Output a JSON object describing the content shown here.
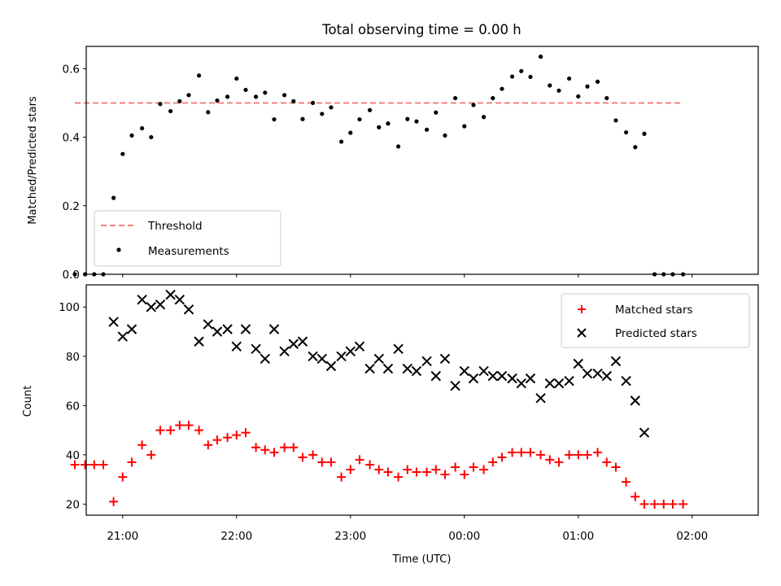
{
  "chart_data": [
    {
      "type": "scatter",
      "title": "Total observing time = 0.00 h",
      "ylabel": "Matched/Predicted stars",
      "ylim": [
        0,
        0.665
      ],
      "yticks": [
        "0.0",
        "0.2",
        "0.4",
        "0.6"
      ],
      "xrange_hours": [
        -3.32,
        2.58
      ],
      "xtick_hours": [
        -3,
        -2,
        -1,
        0,
        1,
        2
      ],
      "grid": false,
      "legend_position": "lower-left",
      "threshold": {
        "name": "Threshold",
        "value": 0.5,
        "x_start": -3.42,
        "x_end": 1.92,
        "color": "#f08080"
      },
      "series": [
        {
          "name": "Measurements",
          "color": "#000000",
          "marker": "dot",
          "x": [
            -3.42,
            -3.33,
            -3.25,
            -3.17,
            -3.08,
            -3.0,
            -2.92,
            -2.83,
            -2.75,
            -2.67,
            -2.58,
            -2.5,
            -2.42,
            -2.33,
            -2.25,
            -2.17,
            -2.08,
            -2.0,
            -1.92,
            -1.83,
            -1.75,
            -1.67,
            -1.58,
            -1.5,
            -1.42,
            -1.33,
            -1.25,
            -1.17,
            -1.08,
            -1.0,
            -0.92,
            -0.83,
            -0.75,
            -0.67,
            -0.58,
            -0.5,
            -0.42,
            -0.33,
            -0.25,
            -0.17,
            -0.08,
            0.0,
            0.08,
            0.17,
            0.25,
            0.33,
            0.42,
            0.5,
            0.58,
            0.67,
            0.75,
            0.83,
            0.92,
            1.0,
            1.08,
            1.17,
            1.25,
            1.33,
            1.42,
            1.5,
            1.58,
            1.67,
            1.75,
            1.83,
            1.92
          ],
          "y": [
            0.0,
            0.0,
            0.0,
            0.0,
            0.223,
            0.351,
            0.405,
            0.426,
            0.4,
            0.497,
            0.476,
            0.505,
            0.523,
            0.58,
            0.473,
            0.507,
            0.518,
            0.571,
            0.538,
            0.518,
            0.53,
            0.452,
            0.523,
            0.505,
            0.453,
            0.5,
            0.468,
            0.487,
            0.387,
            0.413,
            0.452,
            0.479,
            0.429,
            0.44,
            0.373,
            0.453,
            0.446,
            0.422,
            0.472,
            0.405,
            0.514,
            0.432,
            0.494,
            0.459,
            0.514,
            0.541,
            0.577,
            0.593,
            0.576,
            0.635,
            0.551,
            0.536,
            0.571,
            0.519,
            0.548,
            0.562,
            0.514,
            0.449,
            0.414,
            0.371,
            0.41,
            0.0,
            0.0,
            0.0,
            0.0
          ]
        }
      ]
    },
    {
      "type": "scatter",
      "xlabel": "Time (UTC)",
      "ylabel": "Count",
      "ylim": [
        15.5,
        109
      ],
      "yticks": [
        "20",
        "40",
        "60",
        "80",
        "100"
      ],
      "xtick_labels": [
        "21:00",
        "22:00",
        "23:00",
        "00:00",
        "01:00",
        "02:00"
      ],
      "xtick_hours": [
        -3,
        -2,
        -1,
        0,
        1,
        2
      ],
      "grid": false,
      "legend_position": "upper-right",
      "series": [
        {
          "name": "Matched stars",
          "color": "#ff0000",
          "marker": "plus",
          "x": [
            -3.42,
            -3.33,
            -3.25,
            -3.17,
            -3.08,
            -3.0,
            -2.92,
            -2.83,
            -2.75,
            -2.67,
            -2.58,
            -2.5,
            -2.42,
            -2.33,
            -2.25,
            -2.17,
            -2.08,
            -2.0,
            -1.92,
            -1.83,
            -1.75,
            -1.67,
            -1.58,
            -1.5,
            -1.42,
            -1.33,
            -1.25,
            -1.17,
            -1.08,
            -1.0,
            -0.92,
            -0.83,
            -0.75,
            -0.67,
            -0.58,
            -0.5,
            -0.42,
            -0.33,
            -0.25,
            -0.17,
            -0.08,
            0.0,
            0.08,
            0.17,
            0.25,
            0.33,
            0.42,
            0.5,
            0.58,
            0.67,
            0.75,
            0.83,
            0.92,
            1.0,
            1.08,
            1.17,
            1.25,
            1.33,
            1.42,
            1.5,
            1.58,
            1.67,
            1.75,
            1.83,
            1.92
          ],
          "y": [
            36,
            36,
            36,
            36,
            21,
            31,
            37,
            44,
            40,
            50,
            50,
            52,
            52,
            50,
            44,
            46,
            47,
            48,
            49,
            43,
            42,
            41,
            43,
            43,
            39,
            40,
            37,
            37,
            31,
            34,
            38,
            36,
            34,
            33,
            31,
            34,
            33,
            33,
            34,
            32,
            35,
            32,
            35,
            34,
            37,
            39,
            41,
            41,
            41,
            40,
            38,
            37,
            40,
            40,
            40,
            41,
            37,
            35,
            29,
            23,
            20,
            20,
            20,
            20,
            20
          ]
        },
        {
          "name": "Predicted stars",
          "color": "#000000",
          "marker": "x",
          "x": [
            -3.08,
            -3.0,
            -2.92,
            -2.83,
            -2.75,
            -2.67,
            -2.58,
            -2.5,
            -2.42,
            -2.33,
            -2.25,
            -2.17,
            -2.08,
            -2.0,
            -1.92,
            -1.83,
            -1.75,
            -1.67,
            -1.58,
            -1.5,
            -1.42,
            -1.33,
            -1.25,
            -1.17,
            -1.08,
            -1.0,
            -0.92,
            -0.83,
            -0.75,
            -0.67,
            -0.58,
            -0.5,
            -0.42,
            -0.33,
            -0.25,
            -0.17,
            -0.08,
            0.0,
            0.08,
            0.17,
            0.25,
            0.33,
            0.42,
            0.5,
            0.58,
            0.67,
            0.75,
            0.83,
            0.92,
            1.0,
            1.08,
            1.17,
            1.25,
            1.33,
            1.42,
            1.5,
            1.58
          ],
          "y": [
            94,
            88,
            91,
            103,
            100,
            101,
            105,
            103,
            99,
            86,
            93,
            90,
            91,
            84,
            91,
            83,
            79,
            91,
            82,
            85,
            86,
            80,
            79,
            76,
            80,
            82,
            84,
            75,
            79,
            75,
            83,
            75,
            74,
            78,
            72,
            79,
            68,
            74,
            71,
            74,
            72,
            72,
            71,
            69,
            71,
            63,
            69,
            69,
            70,
            77,
            73,
            73,
            72,
            78,
            70,
            62,
            49
          ]
        }
      ]
    }
  ]
}
